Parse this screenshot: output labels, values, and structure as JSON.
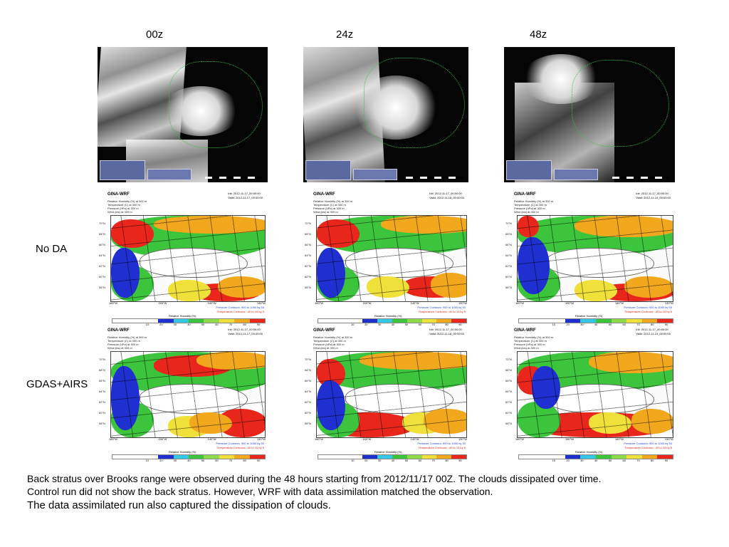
{
  "columns": [
    "00z",
    "24z",
    "48z"
  ],
  "rows": [
    "No DA",
    "GDAS+AIRS"
  ],
  "wrf_panel": {
    "model": "GINA-WRF",
    "fields": [
      "Relative Humidity (%) at 300 m",
      "Temperature (C) at 300 m",
      "Pressure (hPa) at 300 m",
      "Wind (kts) at 300 m"
    ],
    "init": "Init: 2012-11-17_00:00:00",
    "valid": [
      "Valid: 2012-11-17_00:00:00",
      "Valid: 2012-11-18_00:00:00",
      "Valid: 2012-11-19_00:00:00"
    ],
    "lat_labels": [
      "70°N",
      "68°N",
      "66°N",
      "64°N",
      "62°N",
      "60°N",
      "58°N"
    ],
    "lon_labels": [
      "160°W",
      "150°W",
      "140°W",
      "130°W"
    ],
    "pressure_contours": "Pressure Contours: 900 to 1050 by 50",
    "temperature_contours": "Temperature Contours: -40 to 15 by 5",
    "colorbar_title": "Relative Humidity (%)",
    "colorbar_ticks": [
      "10",
      "20",
      "30",
      "40",
      "50",
      "60",
      "70",
      "80",
      "90"
    ],
    "colorbar_colors": [
      "#ffffff",
      "#ffffff",
      "#ffffff",
      "#1f2fd0",
      "#35c8e6",
      "#3cc43c",
      "#8fdc4a",
      "#f0e13a",
      "#f2a81d",
      "#e8261c"
    ]
  },
  "caption": {
    "line1": "Back stratus over Brooks range were observed during the 48 hours starting from 2012/11/17 00Z. The clouds dissipated over time.",
    "line2": "Control run did not show the back stratus.  However, WRF with data assimilation matched the observation.",
    "line3": "The data assimilated run also captured the dissipation of clouds."
  }
}
